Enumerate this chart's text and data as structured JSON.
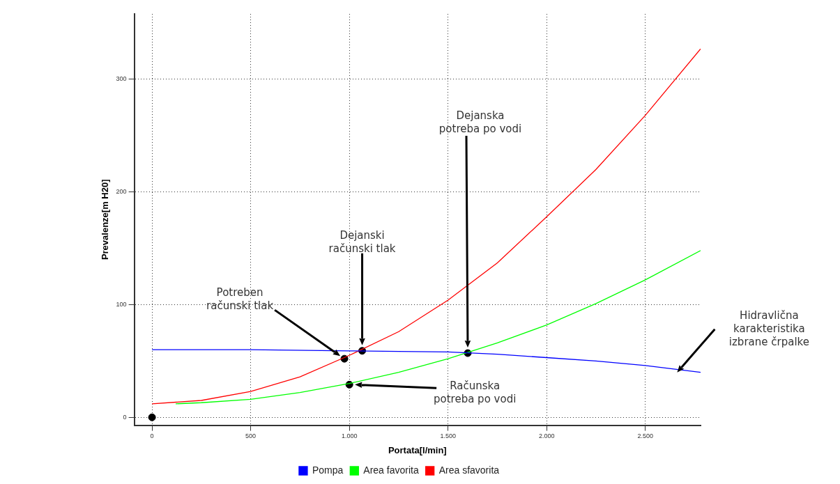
{
  "chart_data": {
    "type": "line",
    "xlabel": "Portata[l/min]",
    "ylabel": "Prevalenze[m H20]",
    "xlim": [
      -90,
      2780
    ],
    "ylim": [
      -7,
      358
    ],
    "xticks": [
      0,
      500,
      {
        "value": 1000,
        "label": "1.000"
      },
      {
        "value": 1500,
        "label": "1.500"
      },
      {
        "value": 2000,
        "label": "2.000"
      },
      {
        "value": 2500,
        "label": "2.500"
      }
    ],
    "yticks": [
      0,
      100,
      200,
      300
    ],
    "grid": true,
    "legend": "bottom",
    "marker": "none",
    "line_style": "solid",
    "series": [
      {
        "name": "Pompa",
        "color": "#0000ff",
        "x": [
          0,
          500,
          1000,
          1250,
          1500,
          1750,
          2000,
          2250,
          2500,
          2780
        ],
        "values": [
          60,
          60,
          59,
          58.5,
          58,
          56,
          53,
          50,
          46,
          40
        ]
      },
      {
        "name": "Area favorita",
        "color": "#00ff00",
        "x": [
          120,
          250,
          500,
          750,
          1000,
          1250,
          1500,
          1750,
          2000,
          2250,
          2500,
          2780
        ],
        "values": [
          12,
          13,
          16,
          22,
          30,
          40,
          52,
          66,
          82,
          101,
          122,
          148
        ]
      },
      {
        "name": "Area sfavorita",
        "color": "#ff0000",
        "x": [
          0,
          250,
          500,
          750,
          1000,
          1250,
          1500,
          1750,
          2000,
          2250,
          2500,
          2780
        ],
        "values": [
          12,
          15,
          23,
          36,
          55,
          76,
          104,
          137,
          178,
          220,
          268,
          327
        ]
      },
      {
        "type": "scatter",
        "marker": "circle",
        "color": "#000000",
        "x": [
          0,
          975,
          1065,
          1000,
          1600
        ],
        "values": [
          0,
          52,
          59,
          29,
          57
        ]
      }
    ],
    "annotations": [
      "Potreben\nračunski tlak",
      "Dejanski\nračunski tlak",
      "Dejanska\npotreba po vodi",
      "Računska\npotreba po vodi",
      "Hidravlična\nkarakteristika\nizbrane črpalke"
    ]
  }
}
